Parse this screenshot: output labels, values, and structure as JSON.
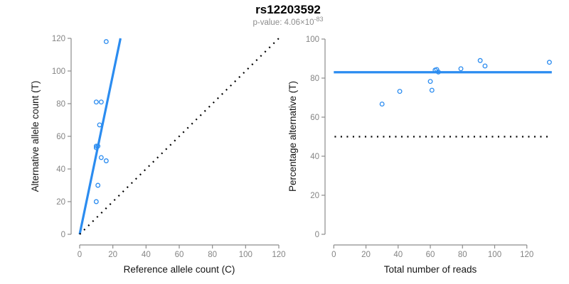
{
  "palette": {
    "accent_blue": "#2b8cf0",
    "line_black": "#000000",
    "axis_gray": "#8c8c8c",
    "tick_label_gray": "#848484",
    "subtitle_gray": "#8d8d8d",
    "title_black": "#000000"
  },
  "header": {
    "title": "rs12203592",
    "p_value_prefix": "p-value: 4.06×10",
    "p_value_exponent": "-83"
  },
  "chart_data": [
    {
      "type": "scatter",
      "panel": "left",
      "xlabel": "Reference allele count (C)",
      "ylabel": "Alternative allele count (T)",
      "xlim": [
        0,
        120
      ],
      "ylim": [
        0,
        120
      ],
      "grid": false,
      "legend": "none",
      "xticks": [
        0,
        20,
        40,
        60,
        80,
        100,
        120
      ],
      "yticks": [
        0,
        20,
        40,
        60,
        80,
        100,
        120
      ],
      "points": [
        [
          10,
          20
        ],
        [
          11,
          30
        ],
        [
          16,
          45
        ],
        [
          13,
          47
        ],
        [
          10,
          53
        ],
        [
          10,
          54
        ],
        [
          11,
          54
        ],
        [
          12,
          67
        ],
        [
          10,
          81
        ],
        [
          13,
          81
        ],
        [
          16,
          118
        ]
      ],
      "lines": [
        {
          "name": "regression-line",
          "style": "solid",
          "color": "#2b8cf0",
          "width": 3.2,
          "x1": 0,
          "y1": 0,
          "x2": 24.6,
          "y2": 120
        },
        {
          "name": "identity-line",
          "style": "dotted",
          "color": "#000000",
          "width": 2.2,
          "x1": 0,
          "y1": 0,
          "x2": 120,
          "y2": 120
        }
      ]
    },
    {
      "type": "scatter",
      "panel": "right",
      "xlabel": "Total number of reads",
      "ylabel": "Percentage alternative (T)",
      "xlim": [
        0,
        136
      ],
      "ylim": [
        0,
        100
      ],
      "grid": false,
      "legend": "none",
      "xticks": [
        0,
        20,
        40,
        60,
        80,
        100,
        120
      ],
      "yticks": [
        0,
        20,
        40,
        60,
        80,
        100
      ],
      "points": [
        [
          30,
          66.7
        ],
        [
          41,
          73.2
        ],
        [
          60,
          78.3
        ],
        [
          61,
          73.8
        ],
        [
          63,
          84.1
        ],
        [
          64,
          84.4
        ],
        [
          65,
          83.1
        ],
        [
          79,
          84.8
        ],
        [
          91,
          89.0
        ],
        [
          94,
          86.2
        ],
        [
          134,
          88.1
        ]
      ],
      "lines": [
        {
          "name": "mean-percentage-line",
          "style": "solid",
          "color": "#2b8cf0",
          "width": 3.2,
          "x1": 0,
          "y1": 83,
          "x2": 135.5,
          "y2": 83
        },
        {
          "name": "fifty-percent-line",
          "style": "dotted",
          "color": "#000000",
          "width": 2.2,
          "x1": 0.5,
          "y1": 50,
          "x2": 133,
          "y2": 50
        }
      ]
    }
  ]
}
